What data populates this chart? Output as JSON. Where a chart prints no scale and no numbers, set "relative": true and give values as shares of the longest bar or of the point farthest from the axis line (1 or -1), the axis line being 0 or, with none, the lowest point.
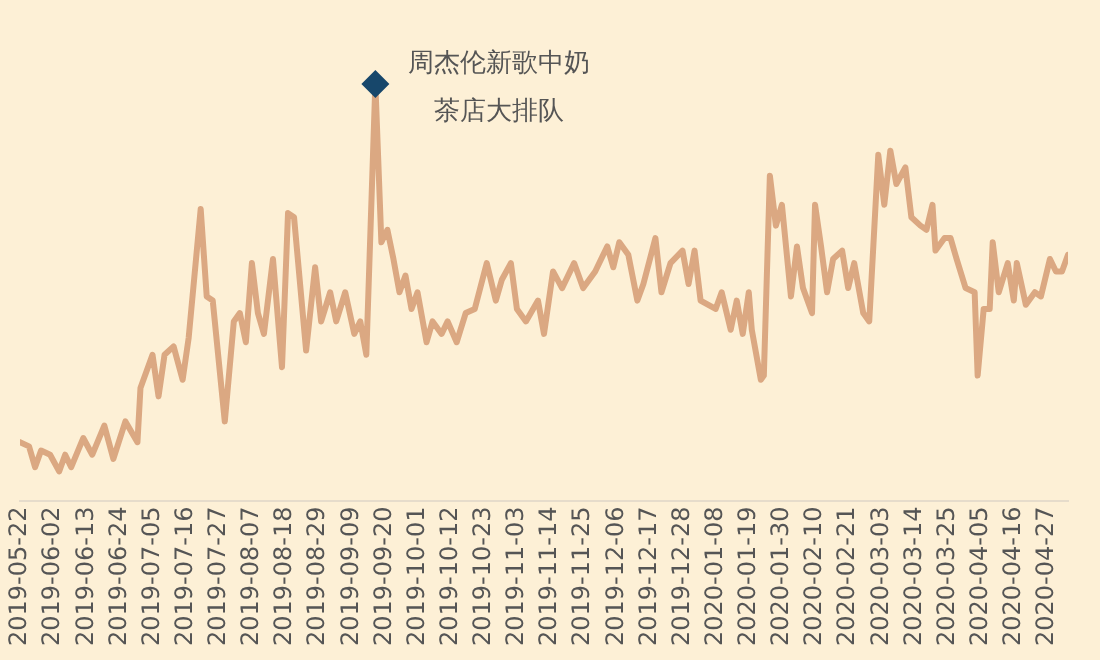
{
  "chart_data": {
    "type": "line",
    "relative": true,
    "x": [
      "2019-05-22",
      "2019-05-25",
      "2019-05-27",
      "2019-05-29",
      "2019-06-01",
      "2019-06-04",
      "2019-06-06",
      "2019-06-08",
      "2019-06-12",
      "2019-06-15",
      "2019-06-19",
      "2019-06-22",
      "2019-06-26",
      "2019-06-30",
      "2019-07-01",
      "2019-07-05",
      "2019-07-07",
      "2019-07-09",
      "2019-07-12",
      "2019-07-15",
      "2019-07-17",
      "2019-07-21",
      "2019-07-23",
      "2019-07-25",
      "2019-07-29",
      "2019-08-01",
      "2019-08-03",
      "2019-08-05",
      "2019-08-07",
      "2019-08-09",
      "2019-08-11",
      "2019-08-14",
      "2019-08-17",
      "2019-08-19",
      "2019-08-21",
      "2019-08-25",
      "2019-08-28",
      "2019-08-30",
      "2019-09-02",
      "2019-09-04",
      "2019-09-07",
      "2019-09-10",
      "2019-09-12",
      "2019-09-14",
      "2019-09-17",
      "2019-09-19",
      "2019-09-21",
      "2019-09-23",
      "2019-09-25",
      "2019-09-27",
      "2019-09-29",
      "2019-10-01",
      "2019-10-04",
      "2019-10-06",
      "2019-10-09",
      "2019-10-11",
      "2019-10-14",
      "2019-10-17",
      "2019-10-20",
      "2019-10-24",
      "2019-10-27",
      "2019-10-29",
      "2019-11-01",
      "2019-11-03",
      "2019-11-06",
      "2019-11-10",
      "2019-11-12",
      "2019-11-15",
      "2019-11-18",
      "2019-11-22",
      "2019-11-25",
      "2019-11-29",
      "2019-12-03",
      "2019-12-05",
      "2019-12-07",
      "2019-12-10",
      "2019-12-13",
      "2019-12-15",
      "2019-12-19",
      "2019-12-21",
      "2019-12-24",
      "2019-12-28",
      "2019-12-30",
      "2020-01-01",
      "2020-01-03",
      "2020-01-08",
      "2020-01-10",
      "2020-01-13",
      "2020-01-15",
      "2020-01-17",
      "2020-01-19",
      "2020-01-20",
      "2020-01-23",
      "2020-01-24",
      "2020-01-26",
      "2020-01-28",
      "2020-01-30",
      "2020-02-02",
      "2020-02-04",
      "2020-02-06",
      "2020-02-09",
      "2020-02-10",
      "2020-02-12",
      "2020-02-14",
      "2020-02-16",
      "2020-02-19",
      "2020-02-21",
      "2020-02-23",
      "2020-02-26",
      "2020-02-28",
      "2020-03-02",
      "2020-03-04",
      "2020-03-06",
      "2020-03-08",
      "2020-03-11",
      "2020-03-13",
      "2020-03-16",
      "2020-03-18",
      "2020-03-20",
      "2020-03-21",
      "2020-03-24",
      "2020-03-26",
      "2020-03-28",
      "2020-03-31",
      "2020-04-03",
      "2020-04-04",
      "2020-04-06",
      "2020-04-08",
      "2020-04-09",
      "2020-04-11",
      "2020-04-14",
      "2020-04-16",
      "2020-04-17",
      "2020-04-20",
      "2020-04-23",
      "2020-04-25",
      "2020-04-28",
      "2020-04-30",
      "2020-05-02",
      "2020-05-04"
    ],
    "series": [
      {
        "color": "#dba882",
        "values": [
          0.14,
          0.13,
          0.08,
          0.12,
          0.11,
          0.07,
          0.11,
          0.08,
          0.15,
          0.11,
          0.18,
          0.1,
          0.19,
          0.14,
          0.27,
          0.35,
          0.25,
          0.35,
          0.37,
          0.29,
          0.39,
          0.7,
          0.49,
          0.48,
          0.19,
          0.43,
          0.45,
          0.38,
          0.57,
          0.45,
          0.4,
          0.58,
          0.32,
          0.69,
          0.68,
          0.36,
          0.56,
          0.43,
          0.5,
          0.43,
          0.5,
          0.4,
          0.43,
          0.35,
          1.0,
          0.62,
          0.65,
          0.58,
          0.5,
          0.54,
          0.46,
          0.5,
          0.38,
          0.43,
          0.4,
          0.43,
          0.38,
          0.45,
          0.46,
          0.57,
          0.48,
          0.53,
          0.57,
          0.46,
          0.43,
          0.48,
          0.4,
          0.55,
          0.51,
          0.57,
          0.51,
          0.55,
          0.61,
          0.56,
          0.62,
          0.59,
          0.48,
          0.52,
          0.63,
          0.5,
          0.57,
          0.6,
          0.52,
          0.6,
          0.48,
          0.46,
          0.5,
          0.41,
          0.48,
          0.4,
          0.5,
          0.41,
          0.29,
          0.3,
          0.78,
          0.66,
          0.71,
          0.49,
          0.61,
          0.51,
          0.45,
          0.71,
          0.61,
          0.5,
          0.58,
          0.6,
          0.51,
          0.57,
          0.45,
          0.43,
          0.83,
          0.71,
          0.84,
          0.76,
          0.8,
          0.68,
          0.66,
          0.65,
          0.71,
          0.6,
          0.63,
          0.63,
          0.58,
          0.51,
          0.5,
          0.3,
          0.46,
          0.46,
          0.62,
          0.5,
          0.57,
          0.48,
          0.57,
          0.47,
          0.5,
          0.49,
          0.58,
          0.55,
          0.55,
          0.59
        ]
      }
    ],
    "xlim": [
      "2019-05-22",
      "2020-05-04"
    ],
    "xticks": [
      "2019-05-22",
      "2019-06-02",
      "2019-06-13",
      "2019-06-24",
      "2019-07-05",
      "2019-07-16",
      "2019-07-27",
      "2019-08-07",
      "2019-08-18",
      "2019-08-29",
      "2019-09-09",
      "2019-09-20",
      "2019-10-01",
      "2019-10-12",
      "2019-10-23",
      "2019-11-03",
      "2019-11-14",
      "2019-11-25",
      "2019-12-06",
      "2019-12-17",
      "2019-12-28",
      "2020-01-08",
      "2020-01-19",
      "2020-01-30",
      "2020-02-10",
      "2020-02-21",
      "2020-03-03",
      "2020-03-14",
      "2020-03-25",
      "2020-04-05",
      "2020-04-16",
      "2020-04-27"
    ],
    "annotations": [
      {
        "text": "周杰伦新歌中奶茶店大排队",
        "x": "2019-09-17",
        "y": 1.0
      }
    ],
    "grid": false,
    "legend": false,
    "marker": "none",
    "line_style": "solid"
  }
}
